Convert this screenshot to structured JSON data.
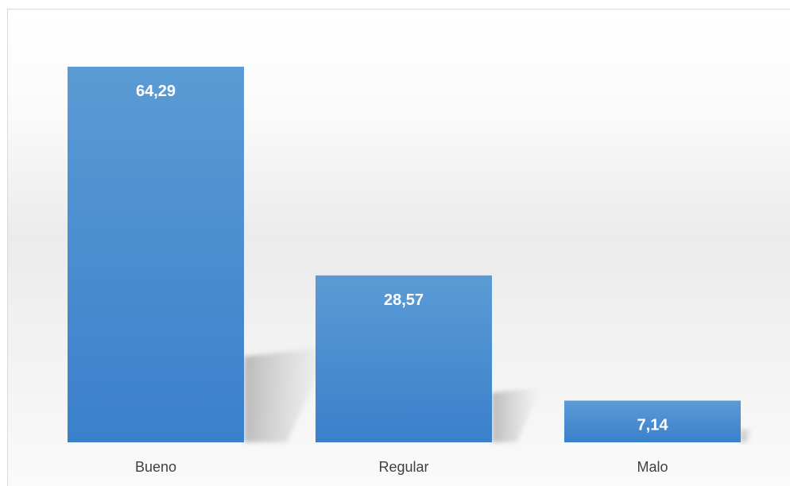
{
  "chart_data": {
    "type": "bar",
    "categories": [
      "Bueno",
      "Regular",
      "Malo"
    ],
    "values": [
      64.29,
      28.57,
      7.14
    ],
    "data_labels": [
      "64,29",
      "28,57",
      "7,14"
    ],
    "title": "",
    "xlabel": "",
    "ylabel": "",
    "ylim": [
      0,
      64.29
    ],
    "grid": false,
    "legend": "none",
    "colors": {
      "bar_top": "#5b9bd5",
      "bar_bottom": "#3a80cb",
      "label": "#ffffff",
      "category_text": "#404040"
    }
  }
}
